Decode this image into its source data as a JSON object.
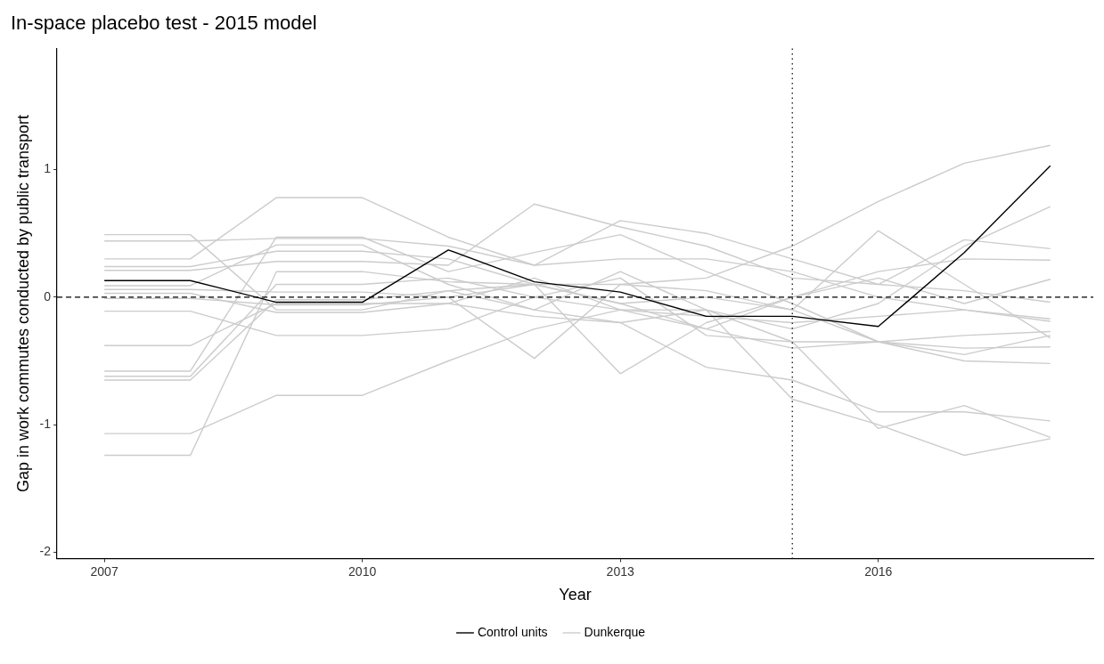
{
  "chart_data": {
    "type": "line",
    "title": "In-space placebo test - 2015 model",
    "xlabel": "Year",
    "ylabel": "Gap in work commutes conducted by public transport",
    "x": [
      2007,
      2008,
      2009,
      2010,
      2011,
      2012,
      2013,
      2014,
      2015,
      2016,
      2017,
      2018
    ],
    "xlim": [
      2006.45,
      2018.5
    ],
    "xticks": [
      2007,
      2010,
      2013,
      2016
    ],
    "ylim": [
      -2.05,
      1.95
    ],
    "yticks": [
      -2,
      -1,
      0,
      1
    ],
    "grid": false,
    "legend": "bottom",
    "marker": "none",
    "line_style": "solid",
    "ref_lines": [
      {
        "axis": "y",
        "value": 0,
        "line_style": "dashed",
        "color": "#000000"
      },
      {
        "axis": "x",
        "value": 2015,
        "line_style": "dotted",
        "color": "#000000"
      }
    ],
    "series": [
      {
        "name": "Control units",
        "color": "#000000",
        "values": [
          0.13,
          0.13,
          -0.04,
          -0.04,
          0.37,
          0.12,
          0.04,
          -0.15,
          -0.15,
          -0.23,
          0.35,
          1.03
        ]
      },
      {
        "name": "Dunkerque",
        "color": "#cccccc",
        "values": [
          0.49,
          0.49,
          -0.1,
          -0.1,
          0.05,
          0.1,
          -0.05,
          0.0,
          -0.1,
          -0.35,
          -0.3,
          -0.27
        ]
      },
      {
        "color": "#cccccc",
        "values": [
          0.44,
          0.44,
          0.46,
          0.46,
          0.4,
          0.25,
          0.3,
          0.3,
          0.2,
          0.0,
          -0.1,
          -0.19
        ]
      },
      {
        "color": "#cccccc",
        "values": [
          0.3,
          0.3,
          0.78,
          0.78,
          0.47,
          0.25,
          0.6,
          0.5,
          0.3,
          0.1,
          0.05,
          -0.04
        ]
      },
      {
        "color": "#cccccc",
        "values": [
          0.24,
          0.24,
          0.36,
          0.36,
          0.3,
          0.1,
          0.1,
          0.15,
          0.4,
          0.75,
          1.05,
          1.19
        ]
      },
      {
        "color": "#cccccc",
        "values": [
          0.21,
          0.21,
          0.28,
          0.28,
          0.25,
          0.73,
          0.55,
          0.4,
          0.15,
          0.1,
          0.45,
          0.38
        ]
      },
      {
        "color": "#cccccc",
        "values": [
          0.09,
          0.09,
          0.41,
          0.41,
          0.1,
          -0.1,
          0.2,
          -0.1,
          -0.25,
          -0.05,
          0.4,
          0.71
        ]
      },
      {
        "color": "#cccccc",
        "values": [
          0.06,
          0.06,
          0.04,
          0.04,
          0.0,
          -0.48,
          0.1,
          0.05,
          -0.1,
          0.52,
          0.1,
          -0.32
        ]
      },
      {
        "color": "#cccccc",
        "values": [
          -0.01,
          -0.01,
          -0.06,
          -0.06,
          0.0,
          0.1,
          -0.6,
          -0.2,
          0.0,
          0.2,
          0.3,
          0.29
        ]
      },
      {
        "color": "#cccccc",
        "values": [
          -0.11,
          -0.11,
          -0.3,
          -0.3,
          -0.25,
          0.0,
          0.15,
          -0.3,
          -0.35,
          -0.35,
          -0.4,
          -0.39
        ]
      },
      {
        "color": "#cccccc",
        "values": [
          -0.38,
          -0.38,
          -0.05,
          -0.05,
          -0.05,
          -0.15,
          -0.2,
          -0.55,
          -0.65,
          -0.9,
          -0.9,
          -0.97
        ]
      },
      {
        "color": "#cccccc",
        "values": [
          -0.58,
          -0.58,
          0.47,
          0.47,
          0.2,
          0.35,
          0.49,
          0.2,
          -0.05,
          -0.35,
          -0.5,
          -0.52
        ]
      },
      {
        "color": "#cccccc",
        "values": [
          -0.62,
          -0.62,
          0.1,
          0.1,
          0.15,
          0.0,
          -0.1,
          -0.1,
          -0.35,
          -1.03,
          -0.85,
          -1.1
        ]
      },
      {
        "color": "#cccccc",
        "values": [
          -0.65,
          -0.65,
          -0.02,
          -0.02,
          0.05,
          -0.1,
          -0.2,
          -0.1,
          -0.8,
          -1.0,
          -1.24,
          -1.11
        ]
      },
      {
        "color": "#cccccc",
        "values": [
          -1.07,
          -1.07,
          -0.77,
          -0.77,
          -0.5,
          -0.25,
          -0.1,
          -0.15,
          -0.2,
          -0.15,
          -0.1,
          -0.17
        ]
      },
      {
        "color": "#cccccc",
        "values": [
          -1.24,
          -1.24,
          0.2,
          0.2,
          0.12,
          0.1,
          -0.05,
          -0.25,
          0.0,
          0.15,
          -0.05,
          0.14
        ]
      },
      {
        "color": "#cccccc",
        "values": [
          0.03,
          0.03,
          -0.12,
          -0.12,
          -0.05,
          0.15,
          -0.1,
          -0.25,
          -0.4,
          -0.35,
          -0.45,
          -0.3
        ]
      }
    ]
  }
}
